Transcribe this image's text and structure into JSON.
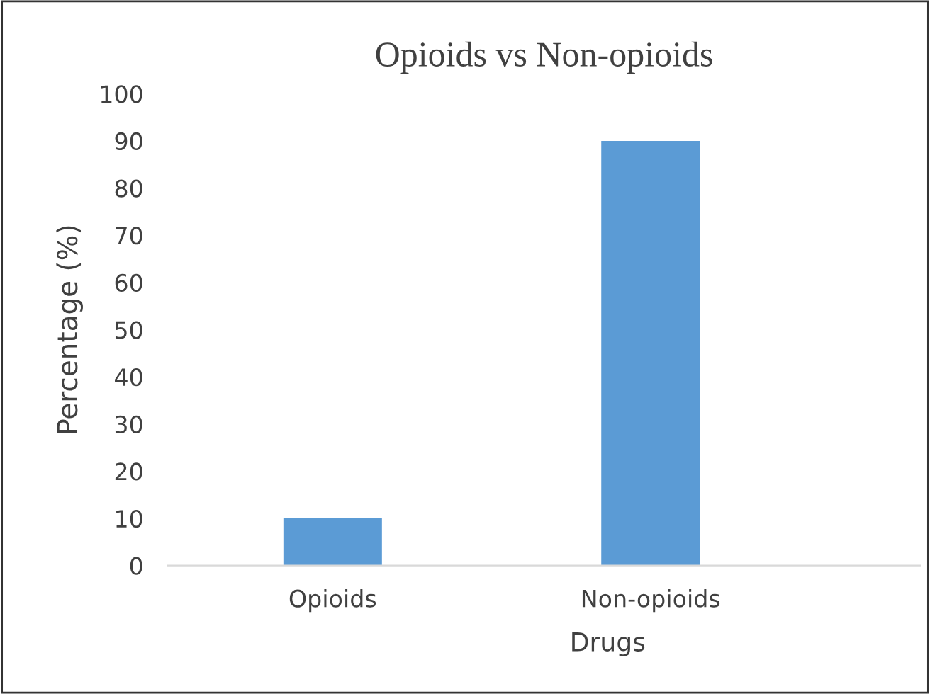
{
  "chart_data": {
    "type": "bar",
    "title": "Opioids vs Non-opioids",
    "xlabel": "Drugs",
    "ylabel": "Percentage (%)",
    "categories": [
      "Opioids",
      "Non-opioids"
    ],
    "values": [
      10,
      90
    ],
    "color": "#5b9bd5",
    "ylim": [
      0,
      100
    ],
    "yticks": [
      0,
      10,
      20,
      30,
      40,
      50,
      60,
      70,
      80,
      90,
      100
    ],
    "grid": false
  }
}
